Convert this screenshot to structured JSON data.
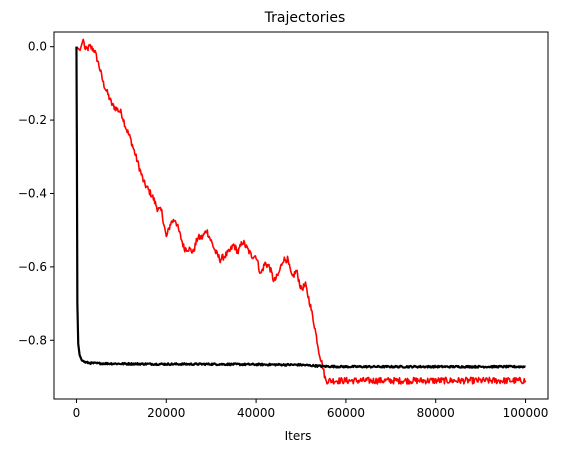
{
  "chart_data": {
    "type": "line",
    "title": "Trajectories",
    "xlabel": "Iters",
    "ylabel": "",
    "xlim": [
      -5000,
      105000
    ],
    "ylim": [
      -0.96,
      0.04
    ],
    "xticks": [
      0,
      20000,
      40000,
      60000,
      80000,
      100000
    ],
    "xtick_labels": [
      "0",
      "20000",
      "40000",
      "60000",
      "80000",
      "100000"
    ],
    "yticks": [
      0.0,
      -0.2,
      -0.4,
      -0.6,
      -0.8
    ],
    "ytick_labels": [
      "0.0",
      "−0.2",
      "−0.4",
      "−0.6",
      "−0.8"
    ],
    "grid": false,
    "legend": "none",
    "series": [
      {
        "color": "#ff0000",
        "x": [
          0,
          800,
          1500,
          2000,
          3000,
          4000,
          5000,
          6000,
          7000,
          8000,
          9000,
          10000,
          11000,
          12000,
          13000,
          14000,
          15000,
          16000,
          17000,
          18000,
          19000,
          20000,
          21000,
          22000,
          23000,
          24000,
          25000,
          26000,
          27000,
          28000,
          29000,
          30000,
          31000,
          32000,
          33000,
          34000,
          35000,
          36000,
          37000,
          38000,
          39000,
          40000,
          41000,
          42000,
          43000,
          44000,
          45000,
          46000,
          47000,
          48000,
          49000,
          50000,
          51000,
          52000,
          53000,
          54000,
          54800,
          55500,
          60000,
          70000,
          80000,
          90000,
          100000
        ],
        "y": [
          0.0,
          -0.01,
          0.02,
          -0.01,
          0.0,
          -0.01,
          -0.05,
          -0.1,
          -0.13,
          -0.16,
          -0.17,
          -0.18,
          -0.22,
          -0.25,
          -0.29,
          -0.33,
          -0.37,
          -0.39,
          -0.41,
          -0.44,
          -0.45,
          -0.52,
          -0.48,
          -0.47,
          -0.51,
          -0.55,
          -0.55,
          -0.56,
          -0.52,
          -0.52,
          -0.5,
          -0.53,
          -0.56,
          -0.58,
          -0.57,
          -0.56,
          -0.54,
          -0.56,
          -0.53,
          -0.55,
          -0.57,
          -0.57,
          -0.62,
          -0.59,
          -0.6,
          -0.64,
          -0.62,
          -0.58,
          -0.58,
          -0.63,
          -0.61,
          -0.66,
          -0.65,
          -0.7,
          -0.76,
          -0.83,
          -0.87,
          -0.91,
          -0.91,
          -0.91,
          -0.91,
          -0.91,
          -0.91
        ]
      },
      {
        "color": "#000000",
        "x": [
          0,
          100,
          200,
          400,
          700,
          1200,
          2000,
          3000,
          5000,
          10000,
          20000,
          30000,
          40000,
          50000,
          55000,
          60000,
          70000,
          80000,
          90000,
          100000
        ],
        "y": [
          0.0,
          -0.3,
          -0.7,
          -0.81,
          -0.84,
          -0.855,
          -0.86,
          -0.862,
          -0.863,
          -0.864,
          -0.865,
          -0.865,
          -0.866,
          -0.867,
          -0.871,
          -0.872,
          -0.872,
          -0.872,
          -0.872,
          -0.872
        ]
      }
    ]
  }
}
